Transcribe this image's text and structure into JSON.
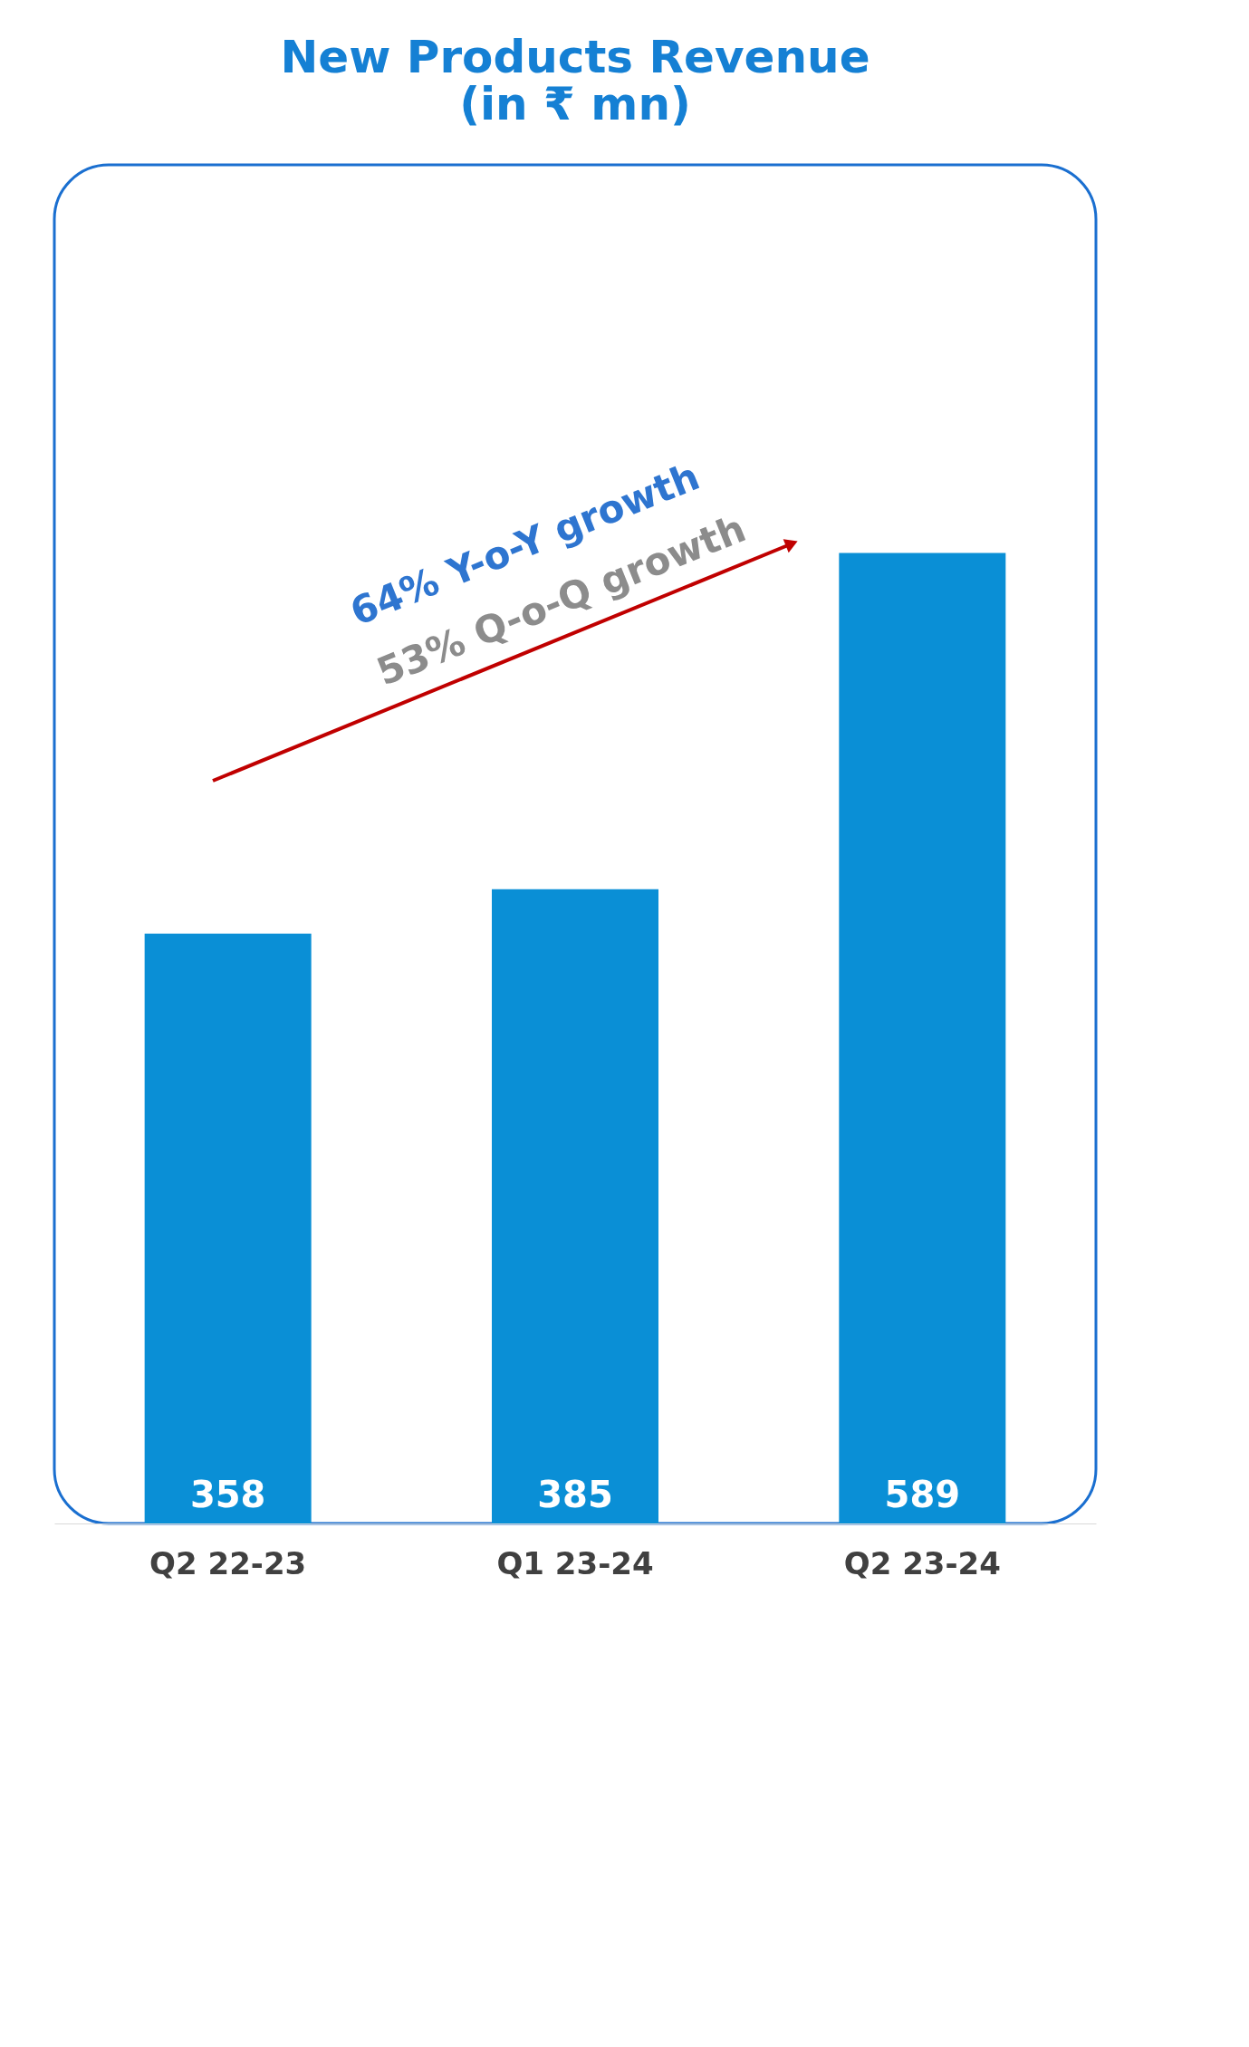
{
  "chart_data": {
    "type": "bar",
    "title": [
      "New Products Revenue",
      "(in ₹ mn)"
    ],
    "categories": [
      "Q2 22-23",
      "Q1 23-24",
      "Q2 23-24"
    ],
    "values": [
      358,
      385,
      589
    ],
    "color": "#0a8fd6",
    "data_labels": true,
    "grid": false,
    "tick_labels": "x",
    "annotations": [
      "64% Y-o-Y growth",
      "53% Q-o-Q growth"
    ]
  }
}
